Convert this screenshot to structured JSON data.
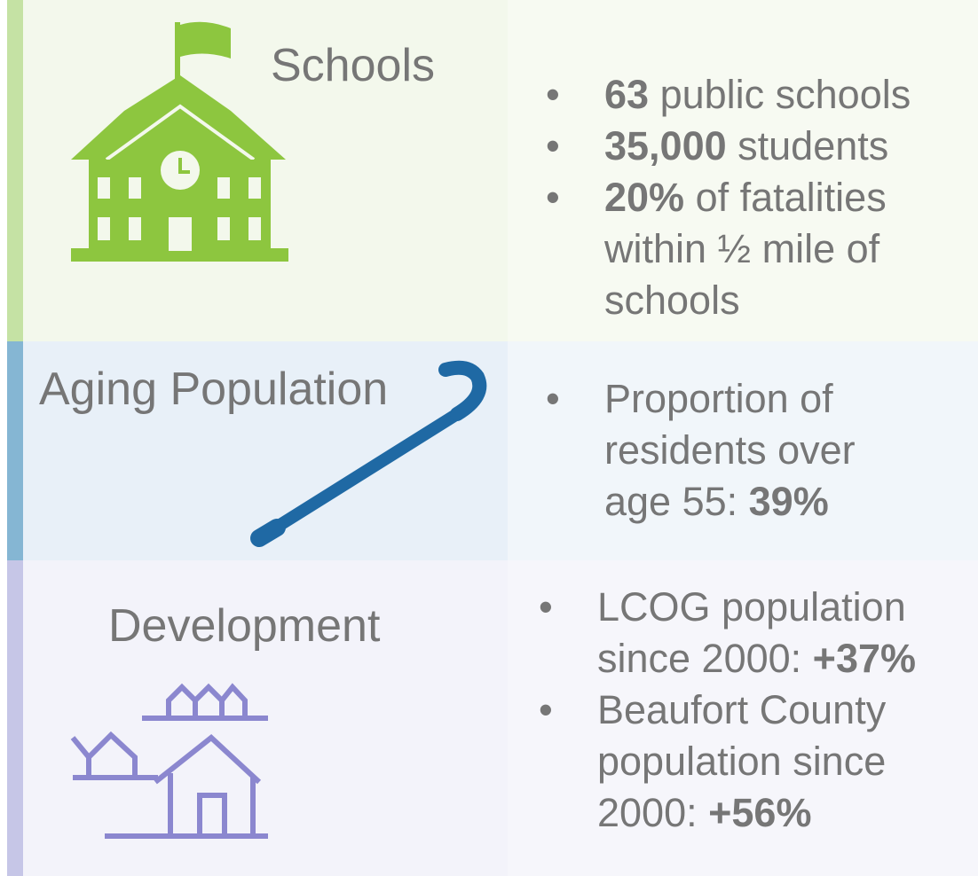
{
  "sections": [
    {
      "title": "Schools",
      "bullets": [
        [
          {
            "text": "63",
            "bold": true
          },
          {
            "text": " public schools",
            "bold": false
          }
        ],
        [
          {
            "text": "35,000",
            "bold": true
          },
          {
            "text": " students",
            "bold": false
          }
        ],
        [
          {
            "text": "20%",
            "bold": true
          },
          {
            "text": " of fatalities within ½ mile of schools",
            "bold": false
          }
        ]
      ]
    },
    {
      "title": "Aging Population",
      "bullets": [
        [
          {
            "text": "Proportion of residents over age 55: ",
            "bold": false
          },
          {
            "text": "39%",
            "bold": true
          }
        ]
      ]
    },
    {
      "title": "Development",
      "bullets": [
        [
          {
            "text": "LCOG population since 2000: ",
            "bold": false
          },
          {
            "text": "+37%",
            "bold": true
          }
        ],
        [
          {
            "text": "Beaufort County population since 2000: ",
            "bold": false
          },
          {
            "text": "+56%",
            "bold": true
          }
        ]
      ]
    }
  ]
}
